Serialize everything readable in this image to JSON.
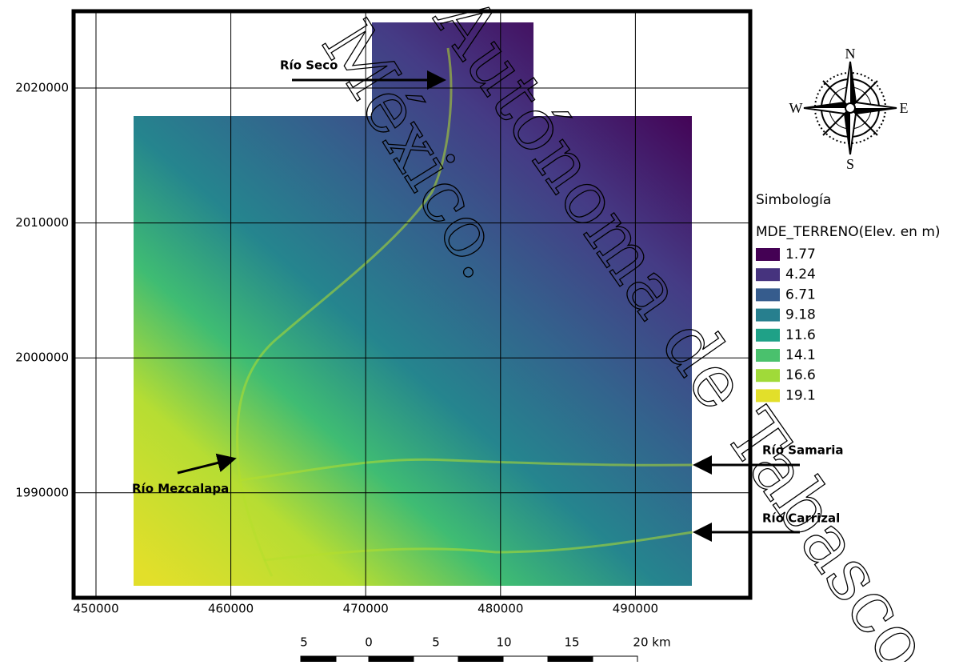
{
  "map": {
    "x_ticks": [
      "450000",
      "460000",
      "470000",
      "480000",
      "490000"
    ],
    "y_ticks": [
      "2020000",
      "2010000",
      "2000000",
      "1990000"
    ],
    "annotations": [
      "Río Seco",
      "Río Mezcalapa",
      "Río Samaria",
      "Río Carrizal"
    ],
    "compass": {
      "n": "N",
      "s": "S",
      "e": "E",
      "w": "W"
    },
    "legend": {
      "title": "Simbología",
      "subtitle": "MDE_TERRENO(Elev. en m)",
      "items": [
        {
          "label": "1.77",
          "color": "#440154"
        },
        {
          "label": "4.24",
          "color": "#46337e"
        },
        {
          "label": "6.71",
          "color": "#365c8d"
        },
        {
          "label": "9.18",
          "color": "#277f8e"
        },
        {
          "label": "11.6",
          "color": "#1fa187"
        },
        {
          "label": "14.1",
          "color": "#4ac16d"
        },
        {
          "label": "16.6",
          "color": "#a0da39"
        },
        {
          "label": "19.1",
          "color": "#e2df2a"
        }
      ]
    },
    "scale_bar": [
      "5",
      "0",
      "5",
      "10",
      "15",
      "20 km"
    ],
    "watermark": [
      "México.",
      "Autónoma de Tabasco"
    ]
  }
}
